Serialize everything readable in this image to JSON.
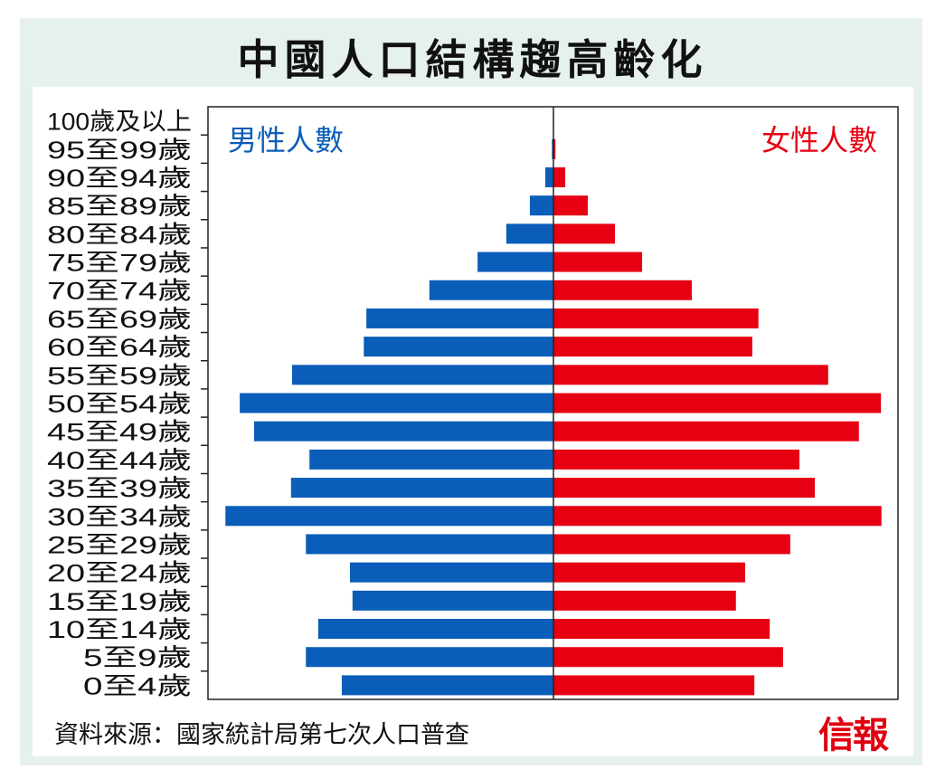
{
  "chart_data": {
    "type": "bar",
    "orientation": "horizontal-pyramid",
    "title": "中國人口結構趨高齡化",
    "categories": [
      "100歲及以上",
      "95至99歲",
      "90至94歲",
      "85至89歲",
      "80至84歲",
      "75至79歲",
      "70至74歲",
      "65至69歲",
      "60至64歲",
      "55至59歲",
      "50至54歲",
      "45至49歲",
      "40至44歲",
      "35至39歲",
      "30至34歲",
      "25至29歲",
      "20至24歲",
      "15至19歲",
      "10至14歲",
      "5至9歲",
      "0至4歲"
    ],
    "series": [
      {
        "name": "男性人數",
        "side": "left",
        "color": "#0a5db8",
        "values": [
          0.05,
          0.3,
          1.6,
          4.6,
          9.2,
          14.8,
          24.2,
          36.5,
          37.0,
          51.0,
          61.2,
          58.4,
          47.6,
          51.2,
          64.0,
          48.3,
          39.7,
          39.2,
          45.9,
          48.3,
          41.3
        ]
      },
      {
        "name": "女性人數",
        "side": "right",
        "color": "#e60012",
        "values": [
          0.1,
          0.4,
          2.3,
          6.7,
          12.0,
          17.3,
          27.0,
          40.0,
          38.8,
          53.6,
          63.9,
          59.6,
          48.0,
          51.0,
          64.0,
          46.2,
          37.4,
          35.6,
          42.2,
          44.8,
          39.2
        ]
      }
    ],
    "xlim": [
      0,
      67.4
    ],
    "xlabel": "",
    "ylabel": "",
    "grid": false,
    "legend": [
      "top-left",
      "top-right"
    ]
  },
  "source": "資料來源：國家統計局第七次人口普查",
  "logo": "信報"
}
